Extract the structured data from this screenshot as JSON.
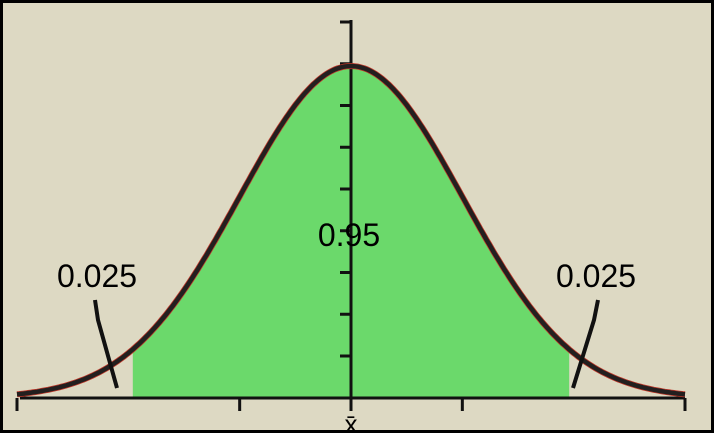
{
  "colors": {
    "background": "#ddd9c3",
    "border": "#000000",
    "shaded_region": "#6bd96b",
    "curve": "#231f1f",
    "curve_edge": "#c0392b",
    "axis": "#111111"
  },
  "chart_data": {
    "type": "area",
    "title": "",
    "xlabel": "",
    "ylabel": "",
    "distribution": "normal",
    "center_label": "x̄",
    "x_range_sd": [
      -3,
      3
    ],
    "shaded_interval_sd": [
      -1.96,
      1.96
    ],
    "x_tick_positions_sd": [
      -3,
      -1,
      0,
      1,
      3
    ],
    "y_tick_count": 9,
    "regions": [
      {
        "label": "0.025",
        "area": 0.025,
        "side": "left-tail"
      },
      {
        "label": "0.95",
        "area": 0.95,
        "side": "center"
      },
      {
        "label": "0.025",
        "area": 0.025,
        "side": "right-tail"
      }
    ],
    "grid": false,
    "legend": "none"
  }
}
